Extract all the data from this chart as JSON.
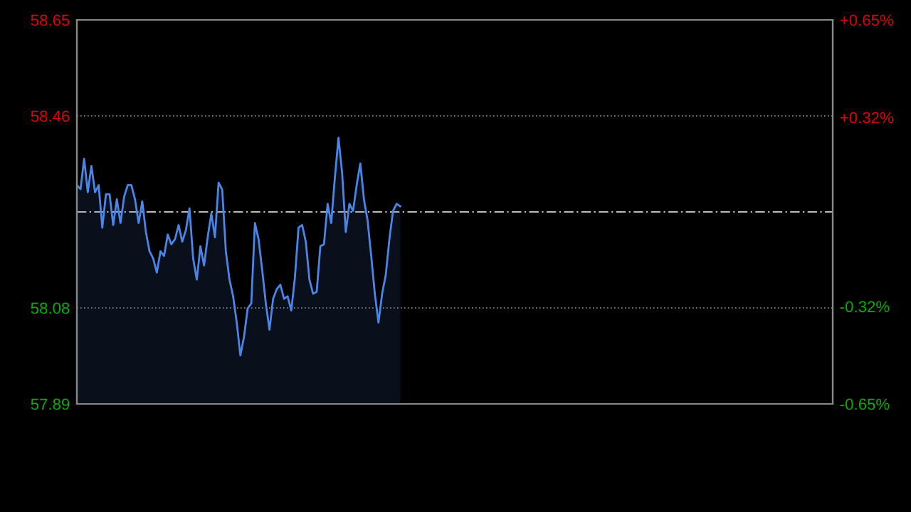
{
  "chart_data": {
    "type": "area",
    "categories": [
      null,
      null,
      null,
      null,
      null,
      null,
      null,
      null,
      null,
      null,
      null,
      null,
      null,
      null,
      null,
      null,
      null,
      null,
      null,
      null,
      null,
      null,
      null,
      null,
      null,
      null,
      null,
      null,
      null,
      null,
      null,
      null,
      null,
      null,
      null,
      null,
      null,
      null,
      null,
      null,
      null,
      null,
      null,
      null,
      null,
      null,
      null,
      null,
      null,
      null,
      null,
      null,
      null,
      null,
      null,
      null,
      null,
      null,
      null,
      null,
      null,
      null,
      null,
      null,
      null,
      null,
      null,
      null,
      null,
      null,
      null,
      null,
      null,
      null,
      null,
      null,
      null,
      null,
      null,
      null,
      null,
      null,
      null,
      null,
      null,
      null,
      null,
      null,
      null,
      null,
      null,
      null,
      null,
      null,
      null,
      null,
      null,
      null,
      null,
      null,
      null,
      null,
      null,
      null,
      null,
      null,
      null,
      null,
      null,
      null,
      null,
      null,
      null,
      null,
      null,
      null,
      null,
      null,
      null,
      null,
      null,
      null,
      null,
      null,
      null,
      null,
      null,
      null,
      null,
      null,
      null,
      null,
      null,
      null,
      null,
      null,
      null,
      null,
      null,
      null,
      null,
      null,
      null,
      null,
      null,
      null,
      null,
      null,
      null,
      null,
      null,
      null,
      null,
      null,
      null,
      null,
      null,
      null,
      null,
      null,
      null,
      null,
      null,
      null,
      null,
      null,
      null,
      null,
      null,
      null,
      null,
      null,
      null,
      null,
      null,
      null,
      null,
      null,
      null,
      null,
      null,
      null,
      null,
      null,
      null,
      null,
      null,
      null,
      null,
      null,
      null,
      null,
      null,
      null,
      null,
      null,
      null,
      null,
      null,
      null,
      null,
      null,
      null,
      null,
      null,
      null,
      null,
      null,
      null
    ],
    "series": [
      {
        "color": "#4a86e8",
        "values": [
          58.323,
          58.315,
          58.375,
          58.309,
          58.361,
          58.309,
          58.323,
          58.239,
          58.305,
          58.305,
          58.244,
          58.295,
          58.248,
          58.3,
          58.323,
          58.323,
          58.295,
          58.248,
          58.291,
          58.23,
          58.192,
          58.178,
          58.15,
          58.192,
          58.183,
          58.225,
          58.206,
          58.216,
          58.244,
          58.211,
          58.234,
          58.277,
          58.178,
          58.136,
          58.202,
          58.164,
          58.22,
          58.267,
          58.22,
          58.328,
          58.314,
          58.192,
          58.136,
          58.103,
          58.051,
          57.986,
          58.023,
          58.079,
          58.089,
          58.248,
          58.216,
          58.155,
          58.089,
          58.037,
          58.098,
          58.117,
          58.126,
          58.098,
          58.103,
          58.075,
          58.14,
          58.239,
          58.244,
          58.211,
          58.136,
          58.108,
          58.112,
          58.202,
          58.206,
          58.286,
          58.248,
          58.338,
          58.417,
          58.347,
          58.23,
          58.286,
          58.272,
          58.323,
          58.366,
          58.295,
          58.253,
          58.183,
          58.108,
          58.051,
          58.108,
          58.145,
          58.216,
          58.272,
          58.286,
          58.281,
          null,
          null,
          null,
          null,
          null,
          null,
          null,
          null,
          null,
          null,
          null,
          null,
          null,
          null,
          null,
          null,
          null,
          null,
          null,
          null,
          null,
          null,
          null,
          null,
          null,
          null,
          null,
          null,
          null,
          null,
          null,
          null,
          null,
          null,
          null,
          null,
          null,
          null,
          null,
          null,
          null,
          null,
          null,
          null,
          null,
          null,
          null,
          null,
          null,
          null,
          null,
          null,
          null,
          null,
          null,
          null,
          null,
          null,
          null,
          null,
          null,
          null,
          null,
          null,
          null,
          null,
          null,
          null,
          null,
          null,
          null,
          null,
          null,
          null,
          null,
          null,
          null,
          null,
          null,
          null,
          null,
          null,
          null,
          null,
          null,
          null,
          null,
          null,
          null,
          null,
          null,
          null,
          null,
          null,
          null,
          null,
          null,
          null,
          null,
          null,
          null,
          null,
          null,
          null,
          null,
          null,
          null,
          null,
          null,
          null,
          null,
          null,
          null,
          null,
          null,
          null,
          null,
          null,
          null
        ]
      }
    ],
    "ylim": [
      57.89,
      58.65
    ],
    "yticks": [
      57.89,
      58.08,
      58.46,
      58.65
    ],
    "y2lim": [
      -0.65,
      0.65
    ],
    "y2ticks": [
      {
        "value": -0.65,
        "label": "-0.65%"
      },
      {
        "value": -0.32,
        "label": "-0.32%"
      },
      {
        "value": 0.32,
        "label": "+0.32%"
      },
      {
        "value": 0.65,
        "label": "+0.65%"
      }
    ],
    "tick_labels": "y",
    "grid": "y",
    "ref_lines": [
      {
        "axis": "y",
        "value": 58.27,
        "color": "#bbbbbb",
        "line_style": "dashed"
      }
    ]
  }
}
